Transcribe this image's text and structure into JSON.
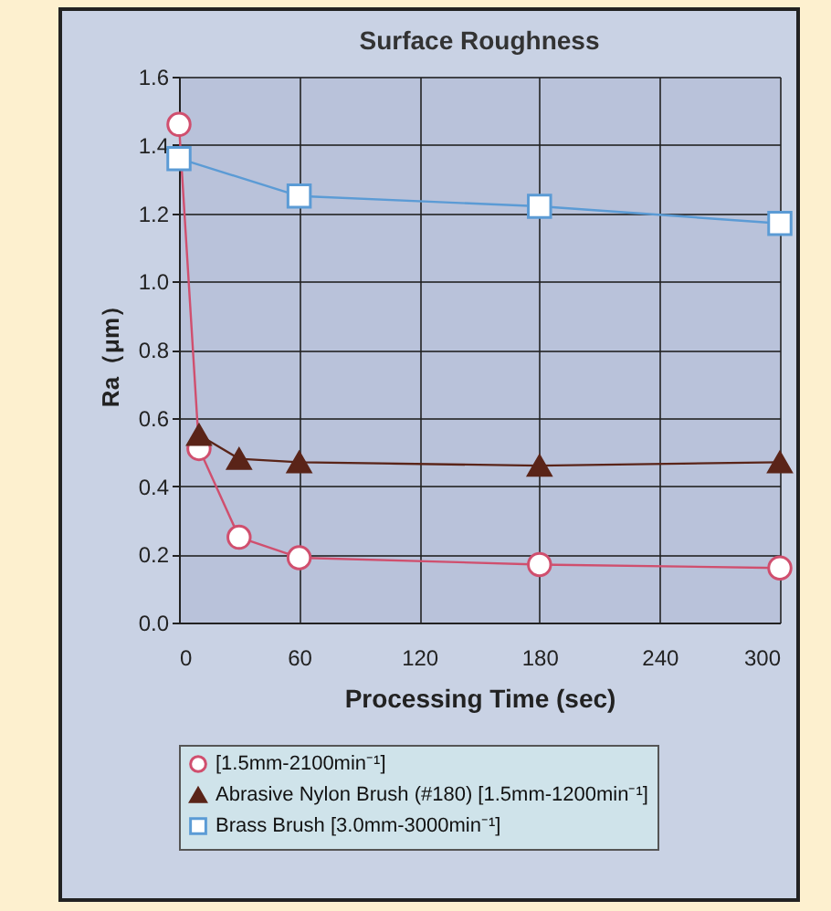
{
  "chart_data": {
    "type": "line",
    "title": "Surface Roughness",
    "xlabel": "Processing Time (sec)",
    "ylabel": "Ra（μm）",
    "xlim": [
      0,
      300
    ],
    "xticks": [
      0,
      60,
      120,
      180,
      240,
      300
    ],
    "ylim": [
      0,
      1.6
    ],
    "yticks": [
      {
        "value": 0,
        "label": "0.0"
      },
      {
        "value": 0.2,
        "label": "0.2"
      },
      {
        "value": 0.4,
        "label": "0.4"
      },
      {
        "value": 0.6,
        "label": "0.6"
      },
      {
        "value": 0.8,
        "label": "0.8"
      },
      {
        "value": 1,
        "label": "1.0"
      },
      {
        "value": 1.2,
        "label": "1.2"
      },
      {
        "value": 1.4,
        "label": "1.4"
      },
      {
        "value": 1.6,
        "label": "1.6"
      }
    ],
    "grid": true,
    "legend": "bottom",
    "series": [
      {
        "name": "[1.5mm-2100min⁻¹]",
        "color": "#d04f6e",
        "marker": "circle",
        "x": [
          0,
          10,
          30,
          60,
          180,
          300
        ],
        "values": [
          1.46,
          0.51,
          0.25,
          0.19,
          0.17,
          0.16
        ]
      },
      {
        "name": "Abrasive Nylon Brush (#180) [1.5mm-1200min⁻¹]",
        "color": "#5a2418",
        "marker": "triangle",
        "x": [
          10,
          30,
          60,
          180,
          300
        ],
        "values": [
          0.55,
          0.48,
          0.47,
          0.46,
          0.47
        ]
      },
      {
        "name": "Brass Brush [3.0mm-3000min⁻¹]",
        "color": "#5b9bd5",
        "marker": "square",
        "x": [
          0,
          60,
          180,
          300
        ],
        "values": [
          1.36,
          1.25,
          1.22,
          1.17
        ]
      }
    ]
  }
}
